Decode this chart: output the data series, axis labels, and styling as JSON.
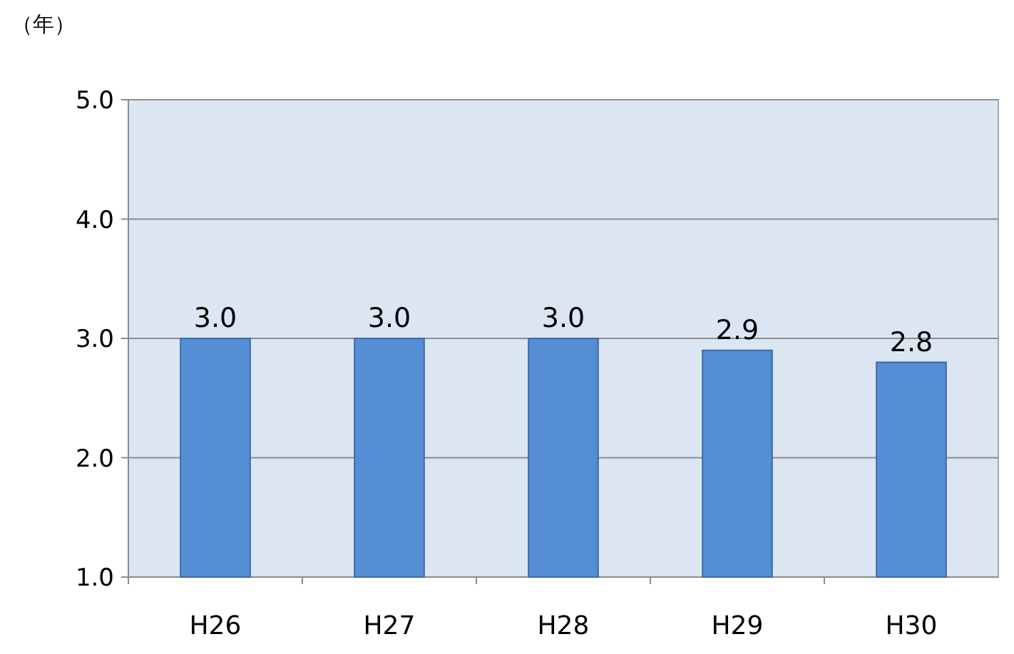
{
  "chart_data": {
    "type": "bar",
    "ylabel": "（年）",
    "categories": [
      "H26",
      "H27",
      "H28",
      "H29",
      "H30"
    ],
    "values": [
      3.0,
      3.0,
      3.0,
      2.9,
      2.8
    ],
    "value_labels": [
      "3.0",
      "3.0",
      "3.0",
      "2.9",
      "2.8"
    ],
    "color": "#558ed5",
    "ylim": [
      1,
      5
    ],
    "yticks": [
      {
        "value": 1,
        "label": "1.0"
      },
      {
        "value": 2,
        "label": "2.0"
      },
      {
        "value": 3,
        "label": "3.0"
      },
      {
        "value": 4,
        "label": "4.0"
      },
      {
        "value": 5,
        "label": "5.0"
      }
    ],
    "grid": "y"
  }
}
